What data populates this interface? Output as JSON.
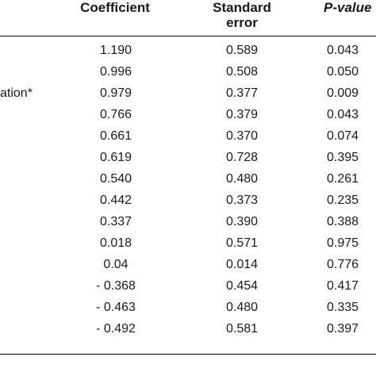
{
  "header": {
    "coefficient": "Coefficient",
    "standard_error_line1": "Standard",
    "standard_error_line2": "error",
    "p_value": "P-value"
  },
  "rows": [
    {
      "label": "",
      "coefficient": "1.190",
      "standard_error": "0.589",
      "p_value": "0.043"
    },
    {
      "label": "",
      "coefficient": "0.996",
      "standard_error": "0.508",
      "p_value": "0.050"
    },
    {
      "label": "ation*",
      "coefficient": "0.979",
      "standard_error": "0.377",
      "p_value": "0.009"
    },
    {
      "label": "",
      "coefficient": "0.766",
      "standard_error": "0.379",
      "p_value": "0.043"
    },
    {
      "label": "",
      "coefficient": "0.661",
      "standard_error": "0.370",
      "p_value": "0.074"
    },
    {
      "label": "",
      "coefficient": "0.619",
      "standard_error": "0.728",
      "p_value": "0.395"
    },
    {
      "label": "",
      "coefficient": "0.540",
      "standard_error": "0.480",
      "p_value": "0.261"
    },
    {
      "label": "",
      "coefficient": "0.442",
      "standard_error": "0.373",
      "p_value": "0.235"
    },
    {
      "label": "",
      "coefficient": "0.337",
      "standard_error": "0.390",
      "p_value": "0.388"
    },
    {
      "label": "",
      "coefficient": "0.018",
      "standard_error": "0.571",
      "p_value": "0.975"
    },
    {
      "label": "",
      "coefficient": "0.04",
      "standard_error": "0.014",
      "p_value": "0.776"
    },
    {
      "label": "",
      "coefficient": "- 0.368",
      "standard_error": "0.454",
      "p_value": "0.417"
    },
    {
      "label": "",
      "coefficient": "- 0.463",
      "standard_error": "0.480",
      "p_value": "0.335"
    },
    {
      "label": "",
      "coefficient": "- 0.492",
      "standard_error": "0.581",
      "p_value": "0.397"
    }
  ]
}
